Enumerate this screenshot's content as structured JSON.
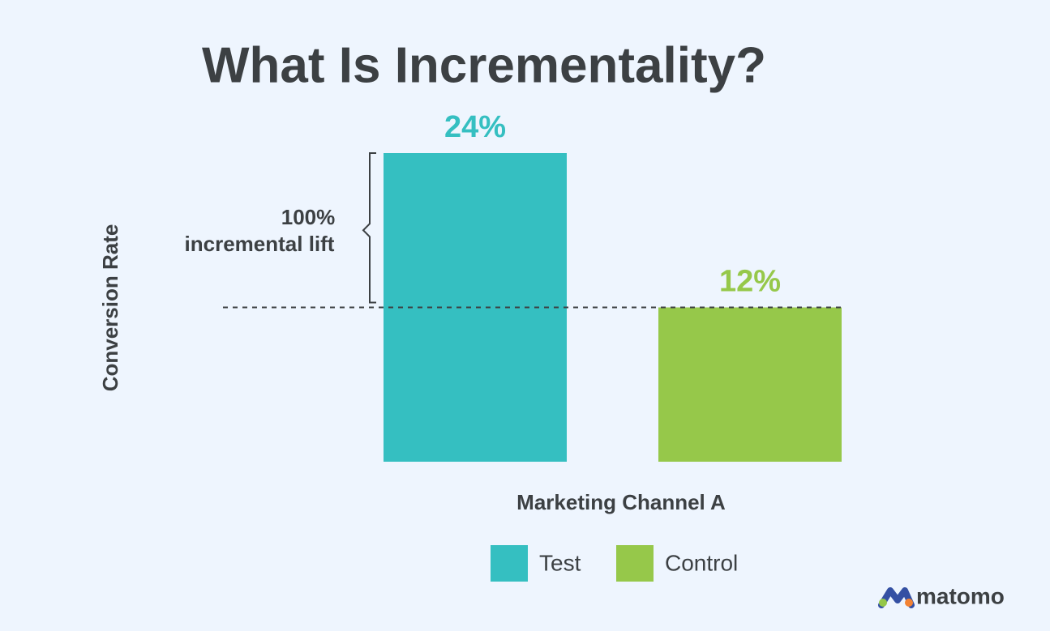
{
  "chart_data": {
    "type": "bar",
    "title": "What Is Incrementality?",
    "y_label": "Conversion Rate",
    "categories": [
      "Marketing Channel A"
    ],
    "series": [
      {
        "name": "Test",
        "color": "#35bfc1",
        "values": [
          24
        ],
        "value_labels": [
          "24%"
        ]
      },
      {
        "name": "Control",
        "color": "#96c84a",
        "values": [
          12
        ],
        "value_labels": [
          "12%"
        ]
      }
    ],
    "annotation": [
      "100%",
      "incremental lift"
    ],
    "logo": "matomo"
  }
}
